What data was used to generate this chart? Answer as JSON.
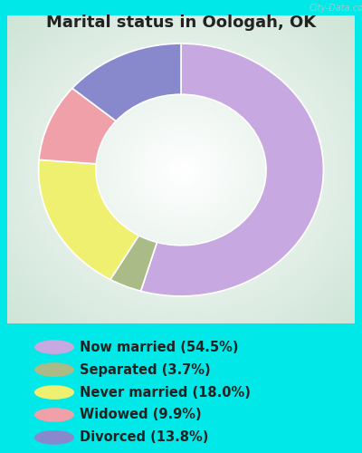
{
  "title": "Marital status in Oologah, OK",
  "slices": [
    54.5,
    3.7,
    18.0,
    9.9,
    13.8
  ],
  "labels": [
    "Now married (54.5%)",
    "Separated (3.7%)",
    "Never married (18.0%)",
    "Widowed (9.9%)",
    "Divorced (13.8%)"
  ],
  "colors": [
    "#c8a8e0",
    "#aabb88",
    "#f0f070",
    "#f0a0a8",
    "#8888cc"
  ],
  "legend_colors": [
    "#c8a8e0",
    "#aabb88",
    "#f0f070",
    "#f0a0a8",
    "#8888cc"
  ],
  "bg_outer": "#00e8e8",
  "bg_chart_color1": "#c8e8d0",
  "bg_chart_color2": "#f0f8f0",
  "title_fontsize": 13,
  "legend_fontsize": 10.5,
  "watermark": "City-Data.com",
  "donut_width": 0.35,
  "start_angle": 90
}
